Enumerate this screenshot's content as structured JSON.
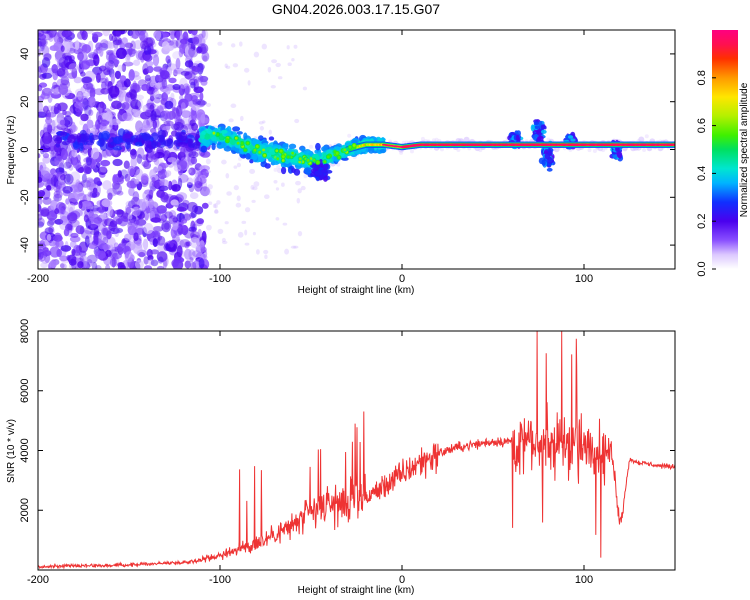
{
  "title": "GN04.2026.003.17.15.G07",
  "chart_data": [
    {
      "type": "heatmap",
      "title": "GN04.2026.003.17.15.G07",
      "xlabel": "Height of straight line (km)",
      "ylabel": "Frequency (Hz)",
      "xlim": [
        -200,
        150
      ],
      "ylim": [
        -50,
        50
      ],
      "xticks": [
        -200,
        -100,
        0,
        100
      ],
      "yticks": [
        -40,
        -20,
        0,
        20,
        40
      ],
      "colorbar": {
        "label": "Normalized spectral amplitude",
        "range": [
          0,
          1
        ],
        "ticks": [
          0.0,
          0.2,
          0.4,
          0.6,
          0.8
        ]
      },
      "dominant_frequency_trace": {
        "x": [
          -110,
          -100,
          -90,
          -80,
          -70,
          -60,
          -50,
          -40,
          -30,
          -20,
          -10,
          0,
          10,
          20,
          40,
          60,
          75,
          90,
          100,
          120,
          150
        ],
        "y": [
          5,
          6,
          3,
          0,
          -2,
          -3,
          -5,
          -3,
          0,
          2,
          2,
          1,
          2,
          2,
          2,
          2,
          2,
          2,
          2,
          2,
          2
        ]
      }
    },
    {
      "type": "line",
      "xlabel": "Height of straight line (km)",
      "ylabel": "SNR (10 * v/v)",
      "xlim": [
        -200,
        150
      ],
      "ylim": [
        0,
        8000
      ],
      "xticks": [
        -200,
        -100,
        0,
        100
      ],
      "yticks": [
        2000,
        4000,
        6000,
        8000
      ],
      "series": [
        {
          "name": "SNR",
          "color": "#ee3333",
          "x": [
            -200,
            -180,
            -160,
            -140,
            -120,
            -110,
            -100,
            -90,
            -80,
            -70,
            -60,
            -50,
            -40,
            -30,
            -20,
            -10,
            0,
            10,
            20,
            30,
            40,
            50,
            60,
            65,
            70,
            75,
            80,
            85,
            90,
            95,
            100,
            105,
            110,
            115,
            120,
            125,
            130,
            140,
            150
          ],
          "y": [
            100,
            150,
            150,
            200,
            250,
            350,
            500,
            700,
            900,
            1200,
            1500,
            1900,
            2200,
            2200,
            2400,
            2800,
            3200,
            3600,
            3900,
            4100,
            4200,
            4300,
            4300,
            4200,
            4300,
            4200,
            4400,
            4100,
            4300,
            4200,
            4100,
            4000,
            3900,
            4000,
            1500,
            3700,
            3600,
            3500,
            3450
          ]
        }
      ]
    }
  ]
}
